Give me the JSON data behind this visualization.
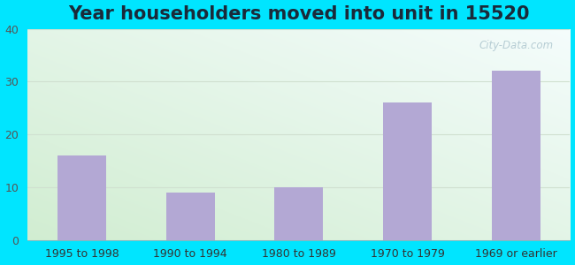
{
  "title": "Year householders moved into unit in 15520",
  "categories": [
    "1995 to 1998",
    "1990 to 1994",
    "1980 to 1989",
    "1970 to 1979",
    "1969 or earlier"
  ],
  "values": [
    16,
    9,
    10,
    26,
    32
  ],
  "bar_color": "#b3a8d4",
  "ylim": [
    0,
    40
  ],
  "yticks": [
    0,
    10,
    20,
    30,
    40
  ],
  "background_outer": "#00e5ff",
  "bg_color_topleft": "#d8edd8",
  "bg_color_topright": "#f0f8f8",
  "bg_color_bottomleft": "#c8e8d0",
  "bg_color_bottomright": "#e8f8f8",
  "title_fontsize": 15,
  "tick_fontsize": 9,
  "title_color": "#1a2a3a",
  "watermark": "City-Data.com",
  "watermark_color": "#b0c8d0",
  "grid_color": "#d0e0d0"
}
